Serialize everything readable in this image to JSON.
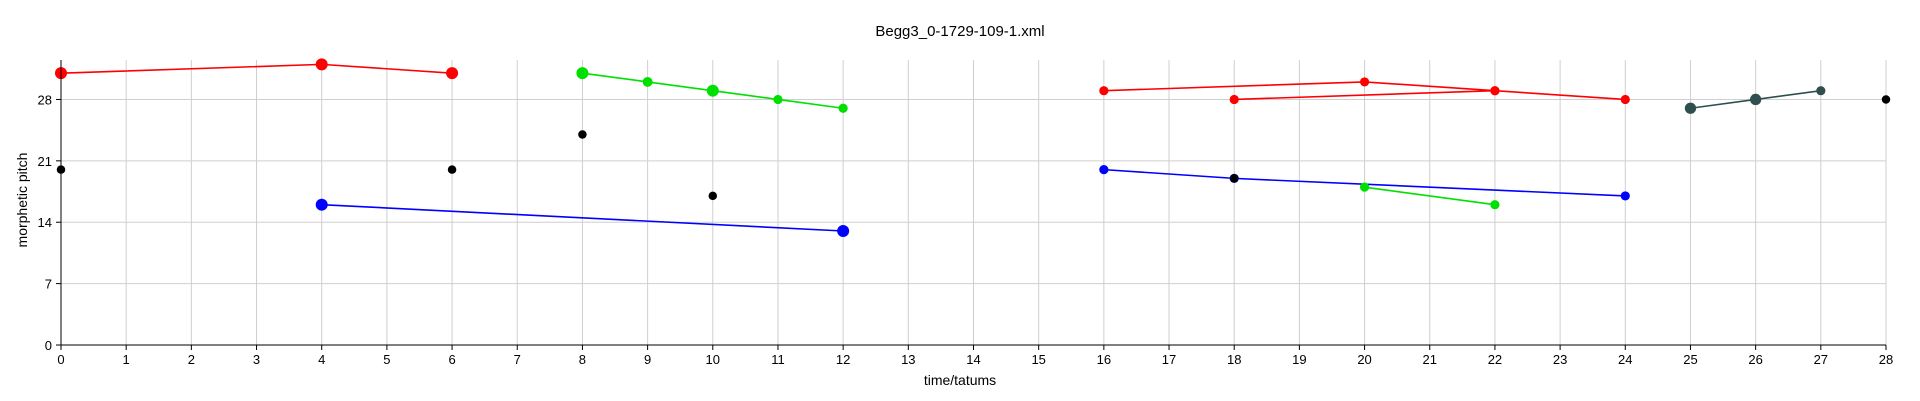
{
  "chart_data": {
    "type": "scatter",
    "title": "Begg3_0-1729-109-1.xml",
    "xlabel": "time/tatums",
    "ylabel": "morphetic pitch",
    "xlim": [
      0,
      28
    ],
    "ylim": [
      0,
      32.5
    ],
    "xticks": [
      0,
      1,
      2,
      3,
      4,
      5,
      6,
      7,
      8,
      9,
      10,
      11,
      12,
      13,
      14,
      15,
      16,
      17,
      18,
      19,
      20,
      21,
      22,
      23,
      24,
      25,
      26,
      27,
      28
    ],
    "yticks": [
      0,
      7,
      14,
      21,
      28
    ],
    "grid": true,
    "series": [
      {
        "color": "#ff0000",
        "points": [
          [
            0,
            31
          ],
          [
            4,
            32
          ],
          [
            6,
            31
          ]
        ],
        "sizes": [
          1,
          1,
          1
        ],
        "connected": true
      },
      {
        "color": "#0000ff",
        "points": [
          [
            4,
            16
          ],
          [
            12,
            13
          ]
        ],
        "sizes": [
          1,
          1
        ],
        "connected": true
      },
      {
        "color": "#00e000",
        "points": [
          [
            8,
            31
          ],
          [
            9,
            30
          ],
          [
            10,
            29
          ],
          [
            11,
            28
          ],
          [
            12,
            27
          ]
        ],
        "sizes": [
          1,
          0.7,
          1,
          0.6,
          0.6
        ],
        "connected": true
      },
      {
        "color": "#ff0000",
        "points": [
          [
            16,
            29
          ],
          [
            20,
            30
          ],
          [
            22,
            29
          ],
          [
            24,
            28
          ]
        ],
        "sizes": [
          0.6,
          0.6,
          0.6,
          0.6
        ],
        "connected": true
      },
      {
        "color": "#ff0000",
        "points": [
          [
            18,
            28
          ],
          [
            22,
            29
          ]
        ],
        "sizes": [
          0.6,
          0.6
        ],
        "connected": true
      },
      {
        "color": "#0000ff",
        "points": [
          [
            16,
            20
          ],
          [
            18,
            19
          ],
          [
            24,
            17
          ]
        ],
        "sizes": [
          0.6,
          0.6,
          0.6
        ],
        "connected": true
      },
      {
        "color": "#00e000",
        "points": [
          [
            20,
            18
          ],
          [
            22,
            16
          ]
        ],
        "sizes": [
          0.6,
          0.6
        ],
        "connected": true
      },
      {
        "color": "#2f4f4f",
        "points": [
          [
            25,
            27
          ],
          [
            26,
            28
          ],
          [
            27,
            29
          ]
        ],
        "sizes": [
          0.9,
          0.9,
          0.6
        ],
        "connected": true
      },
      {
        "color": "#000000",
        "points": [
          [
            0,
            20
          ],
          [
            6,
            20
          ],
          [
            8,
            24
          ],
          [
            10,
            17
          ],
          [
            18,
            19
          ],
          [
            28,
            28
          ]
        ],
        "sizes": [
          0.5,
          0.5,
          0.5,
          0.5,
          0.5,
          0.5
        ],
        "connected": false
      }
    ]
  }
}
